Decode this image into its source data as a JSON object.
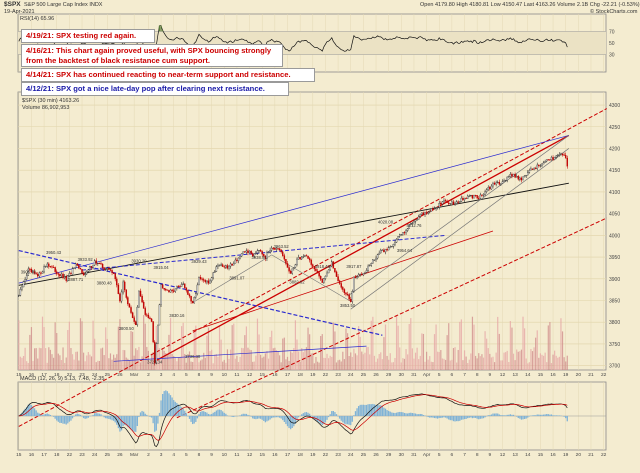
{
  "header": {
    "symbol": "$SPX",
    "name": "S&P 500 Large Cap Index  INDX",
    "date": "19-Apr-2021",
    "ohlc": "Open 4179.80   High 4180.81   Low 4150.47   Last 4163.26   Volume 2.1B   Chg -22.21 (-0.53%)",
    "credit": "© StockCharts.com"
  },
  "notes": [
    {
      "text": "4/19/21:  SPX testing red again.",
      "color": "#cc0000"
    },
    {
      "text": "4/16/21:  This chart again proved useful, with SPX bouncing strongly\nfrom the backtest of black resistance cum support.",
      "color": "#cc0000"
    },
    {
      "text": "4/14/21:  SPX has continued reacting to near-term support and resistance.",
      "color": "#cc0000"
    },
    {
      "text": "4/12/21:  SPX got a nice late-day pop after clearing next resistance.",
      "color": "#1a1aa8"
    }
  ],
  "panels": {
    "top_label": "RSI(14) 65.96",
    "main_label": "$SPX (30 min) 4163.26",
    "volume_label": "Volume 86,902,953",
    "macd_label": "MACD (12, 26, 9)  5.13, 7.48, -2.35"
  },
  "chart_data": {
    "type": "candlestick",
    "timeframe": "30 min",
    "x_labels": [
      {
        "i": 0,
        "label": "15"
      },
      {
        "i": 8,
        "label": "16"
      },
      {
        "i": 16,
        "label": "17"
      },
      {
        "i": 24,
        "label": "18"
      },
      {
        "i": 32,
        "label": "22"
      },
      {
        "i": 40,
        "label": "23"
      },
      {
        "i": 48,
        "label": "24"
      },
      {
        "i": 56,
        "label": "25"
      },
      {
        "i": 64,
        "label": "26"
      },
      {
        "i": 73,
        "label": "Mar"
      },
      {
        "i": 82,
        "label": "2"
      },
      {
        "i": 90,
        "label": "3"
      },
      {
        "i": 98,
        "label": "4"
      },
      {
        "i": 106,
        "label": "5"
      },
      {
        "i": 114,
        "label": "8"
      },
      {
        "i": 122,
        "label": "9"
      },
      {
        "i": 130,
        "label": "10"
      },
      {
        "i": 138,
        "label": "11"
      },
      {
        "i": 146,
        "label": "12"
      },
      {
        "i": 154,
        "label": "15"
      },
      {
        "i": 162,
        "label": "16"
      },
      {
        "i": 170,
        "label": "17"
      },
      {
        "i": 178,
        "label": "18"
      },
      {
        "i": 186,
        "label": "19"
      },
      {
        "i": 194,
        "label": "22"
      },
      {
        "i": 202,
        "label": "23"
      },
      {
        "i": 210,
        "label": "24"
      },
      {
        "i": 218,
        "label": "25"
      },
      {
        "i": 226,
        "label": "26"
      },
      {
        "i": 234,
        "label": "29"
      },
      {
        "i": 242,
        "label": "30"
      },
      {
        "i": 250,
        "label": "31"
      },
      {
        "i": 258,
        "label": "Apr"
      },
      {
        "i": 266,
        "label": "5"
      },
      {
        "i": 274,
        "label": "6"
      },
      {
        "i": 282,
        "label": "7"
      },
      {
        "i": 290,
        "label": "8"
      },
      {
        "i": 298,
        "label": "9"
      },
      {
        "i": 306,
        "label": "12"
      },
      {
        "i": 314,
        "label": "13"
      },
      {
        "i": 322,
        "label": "14"
      },
      {
        "i": 330,
        "label": "15"
      },
      {
        "i": 338,
        "label": "16"
      },
      {
        "i": 346,
        "label": "19"
      },
      {
        "i": 354,
        "label": "20"
      },
      {
        "i": 362,
        "label": "21"
      },
      {
        "i": 370,
        "label": "22"
      }
    ],
    "y_ticks": [
      3700,
      3750,
      3800,
      3850,
      3900,
      3950,
      4000,
      4050,
      4100,
      4150,
      4200,
      4250,
      4300
    ],
    "ylim": [
      3690,
      4330
    ],
    "n_slots": 372,
    "n_bars": 348,
    "anchors": [
      [
        0,
        3862
      ],
      [
        6,
        3920
      ],
      [
        12,
        3905
      ],
      [
        18,
        3935
      ],
      [
        24,
        3915
      ],
      [
        30,
        3898
      ],
      [
        36,
        3930
      ],
      [
        42,
        3910
      ],
      [
        48,
        3940
      ],
      [
        54,
        3925
      ],
      [
        60,
        3915
      ],
      [
        64,
        3850
      ],
      [
        66,
        3890
      ],
      [
        70,
        3830
      ],
      [
        74,
        3795
      ],
      [
        76,
        3870
      ],
      [
        80,
        3820
      ],
      [
        84,
        3800
      ],
      [
        86,
        3710
      ],
      [
        90,
        3885
      ],
      [
        96,
        3870
      ],
      [
        104,
        3890
      ],
      [
        110,
        3840
      ],
      [
        114,
        3900
      ],
      [
        120,
        3890
      ],
      [
        126,
        3935
      ],
      [
        132,
        3925
      ],
      [
        138,
        3945
      ],
      [
        144,
        3965
      ],
      [
        148,
        3955
      ],
      [
        152,
        3970
      ],
      [
        156,
        3950
      ],
      [
        160,
        3975
      ],
      [
        166,
        3960
      ],
      [
        172,
        3910
      ],
      [
        176,
        3945
      ],
      [
        182,
        3955
      ],
      [
        188,
        3915
      ],
      [
        192,
        3895
      ],
      [
        198,
        3935
      ],
      [
        204,
        3880
      ],
      [
        208,
        3860
      ],
      [
        210,
        3845
      ],
      [
        212,
        3900
      ],
      [
        218,
        3915
      ],
      [
        224,
        3940
      ],
      [
        228,
        3960
      ],
      [
        234,
        3970
      ],
      [
        240,
        3995
      ],
      [
        244,
        4010
      ],
      [
        250,
        4035
      ],
      [
        256,
        4050
      ],
      [
        262,
        4060
      ],
      [
        268,
        4077
      ],
      [
        276,
        4075
      ],
      [
        284,
        4088
      ],
      [
        292,
        4090
      ],
      [
        300,
        4116
      ],
      [
        306,
        4125
      ],
      [
        312,
        4140
      ],
      [
        318,
        4130
      ],
      [
        324,
        4150
      ],
      [
        332,
        4168
      ],
      [
        336,
        4173
      ],
      [
        342,
        4190
      ],
      [
        346,
        4181
      ],
      [
        347,
        4163
      ]
    ],
    "swing_labels": [
      {
        "i": 22,
        "v": 3950.43
      },
      {
        "i": 42,
        "v": 3933.92
      },
      {
        "i": 6,
        "v": 3905.73
      },
      {
        "i": 36,
        "v": 3887.71
      },
      {
        "i": 54,
        "v": 3880.48
      },
      {
        "i": 86,
        "v": 3723.34
      },
      {
        "i": 90,
        "v": 3915.04
      },
      {
        "i": 76,
        "v": 3930.2
      },
      {
        "i": 114,
        "v": 3929.43
      },
      {
        "i": 138,
        "v": 3891.07
      },
      {
        "i": 152,
        "v": 3938.93
      },
      {
        "i": 166,
        "v": 3963.52
      },
      {
        "i": 176,
        "v": 3882.62
      },
      {
        "i": 192,
        "v": 3918.48
      },
      {
        "i": 208,
        "v": 3853.5
      },
      {
        "i": 212,
        "v": 3917.87
      },
      {
        "i": 232,
        "v": 4020.08
      },
      {
        "i": 244,
        "v": 3954.64
      },
      {
        "i": 250,
        "v": 4012.76
      },
      {
        "i": 68,
        "v": 3800.5
      },
      {
        "i": 110,
        "v": 3736.3
      },
      {
        "i": 100,
        "v": 3830.16
      }
    ],
    "trendlines": [
      {
        "color": "#cc0000",
        "dash": false,
        "width": 1.3,
        "p1": [
          86,
          3710
        ],
        "p2": [
          348,
          4230
        ]
      },
      {
        "color": "#cc0000",
        "dash": true,
        "width": 1.0,
        "p1": [
          0,
          3560
        ],
        "p2": [
          372,
          4292
        ]
      },
      {
        "color": "#cc0000",
        "dash": true,
        "width": 1.0,
        "p1": [
          100,
          3580
        ],
        "p2": [
          372,
          4040
        ]
      },
      {
        "color": "#cc0000",
        "dash": false,
        "width": 0.8,
        "p1": [
          110,
          3780
        ],
        "p2": [
          300,
          4010
        ]
      },
      {
        "color": "#111111",
        "dash": false,
        "width": 0.9,
        "p1": [
          0,
          3885
        ],
        "p2": [
          348,
          4120
        ]
      },
      {
        "color": "#2a2ad0",
        "dash": false,
        "width": 0.7,
        "p1": [
          0,
          3890
        ],
        "p2": [
          348,
          4230
        ]
      },
      {
        "color": "#2a2ad0",
        "dash": true,
        "width": 1.2,
        "p1": [
          0,
          3965
        ],
        "p2": [
          230,
          3770
        ]
      },
      {
        "color": "#2a2ad0",
        "dash": true,
        "width": 1.0,
        "p1": [
          40,
          3920
        ],
        "p2": [
          270,
          4000
        ]
      },
      {
        "color": "#2a2ad0",
        "dash": false,
        "width": 0.7,
        "p1": [
          60,
          3710
        ],
        "p2": [
          220,
          3745
        ]
      },
      {
        "color": "#777777",
        "dash": false,
        "width": 0.7,
        "p1": [
          208,
          3860
        ],
        "p2": [
          348,
          4230
        ]
      },
      {
        "color": "#777777",
        "dash": false,
        "width": 0.7,
        "p1": [
          210,
          3830
        ],
        "p2": [
          348,
          4200
        ]
      },
      {
        "color": "#777777",
        "dash": false,
        "width": 0.6,
        "p1": [
          160,
          3955
        ],
        "p2": [
          210,
          3848
        ]
      },
      {
        "color": "#777777",
        "dash": false,
        "width": 0.6,
        "p1": [
          110,
          3845
        ],
        "p2": [
          160,
          3955
        ]
      }
    ],
    "rsi_levels": [
      30,
      70
    ],
    "volume_unit": "M"
  }
}
